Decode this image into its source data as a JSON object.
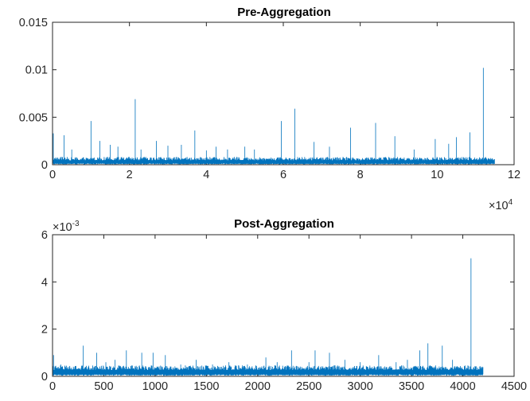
{
  "chart_data": [
    {
      "type": "line",
      "title": "Pre-Aggregation",
      "xlabel": "",
      "ylabel": "",
      "xlim": [
        0,
        120000
      ],
      "ylim": [
        0,
        0.015
      ],
      "x_ticks": [
        0,
        20000,
        40000,
        60000,
        80000,
        100000,
        120000
      ],
      "x_tick_labels": [
        "0",
        "2",
        "4",
        "6",
        "8",
        "10",
        "12"
      ],
      "x_exponent_label": {
        "base": "×10",
        "exp": "4"
      },
      "y_ticks": [
        0,
        0.005,
        0.01,
        0.015
      ],
      "y_tick_labels": [
        "0",
        "0.005",
        "0.01",
        "0.015"
      ],
      "grid": false,
      "color": "#0072BD",
      "n_points": 115000,
      "baseline_level": 0.0003,
      "noise_amplitude": 0.0004,
      "peaks": [
        {
          "x": 200,
          "y": 0.0033
        },
        {
          "x": 3000,
          "y": 0.0031
        },
        {
          "x": 5000,
          "y": 0.0016
        },
        {
          "x": 10000,
          "y": 0.0046
        },
        {
          "x": 12300,
          "y": 0.0025
        },
        {
          "x": 15000,
          "y": 0.0021
        },
        {
          "x": 17000,
          "y": 0.0019
        },
        {
          "x": 21500,
          "y": 0.0069
        },
        {
          "x": 23000,
          "y": 0.0016
        },
        {
          "x": 27000,
          "y": 0.0025
        },
        {
          "x": 30000,
          "y": 0.002
        },
        {
          "x": 33500,
          "y": 0.0021
        },
        {
          "x": 37000,
          "y": 0.0036
        },
        {
          "x": 40000,
          "y": 0.0015
        },
        {
          "x": 42500,
          "y": 0.0019
        },
        {
          "x": 45500,
          "y": 0.0016
        },
        {
          "x": 50000,
          "y": 0.0019
        },
        {
          "x": 52500,
          "y": 0.0016
        },
        {
          "x": 59500,
          "y": 0.0046
        },
        {
          "x": 63000,
          "y": 0.0059
        },
        {
          "x": 68000,
          "y": 0.0024
        },
        {
          "x": 72000,
          "y": 0.0019
        },
        {
          "x": 77500,
          "y": 0.0039
        },
        {
          "x": 84000,
          "y": 0.0044
        },
        {
          "x": 89000,
          "y": 0.003
        },
        {
          "x": 94000,
          "y": 0.0016
        },
        {
          "x": 99500,
          "y": 0.0027
        },
        {
          "x": 103000,
          "y": 0.0022
        },
        {
          "x": 105000,
          "y": 0.0029
        },
        {
          "x": 108500,
          "y": 0.0034
        },
        {
          "x": 112000,
          "y": 0.0102
        }
      ]
    },
    {
      "type": "line",
      "title": "Post-Aggregation",
      "xlabel": "",
      "ylabel": "",
      "xlim": [
        0,
        4500
      ],
      "ylim": [
        0,
        0.006
      ],
      "x_ticks": [
        0,
        500,
        1000,
        1500,
        2000,
        2500,
        3000,
        3500,
        4000,
        4500
      ],
      "x_tick_labels": [
        "0",
        "500",
        "1000",
        "1500",
        "2000",
        "2500",
        "3000",
        "3500",
        "4000",
        "4500"
      ],
      "y_ticks": [
        0,
        0.002,
        0.004,
        0.006
      ],
      "y_tick_labels": [
        "0",
        "2",
        "4",
        "6"
      ],
      "y_exponent_label": {
        "base": "×10",
        "exp": "-3"
      },
      "grid": false,
      "color": "#0072BD",
      "n_points": 4200,
      "baseline_level": 0.00018,
      "noise_amplitude": 0.00022,
      "peaks": [
        {
          "x": 10,
          "y": 0.0009
        },
        {
          "x": 80,
          "y": 0.0005
        },
        {
          "x": 150,
          "y": 0.0004
        },
        {
          "x": 300,
          "y": 0.0013
        },
        {
          "x": 430,
          "y": 0.001
        },
        {
          "x": 520,
          "y": 0.0006
        },
        {
          "x": 610,
          "y": 0.0007
        },
        {
          "x": 720,
          "y": 0.0011
        },
        {
          "x": 870,
          "y": 0.001
        },
        {
          "x": 980,
          "y": 0.001
        },
        {
          "x": 1100,
          "y": 0.0009
        },
        {
          "x": 1250,
          "y": 0.0005
        },
        {
          "x": 1400,
          "y": 0.0007
        },
        {
          "x": 1560,
          "y": 0.0005
        },
        {
          "x": 1720,
          "y": 0.0006
        },
        {
          "x": 1900,
          "y": 0.0005
        },
        {
          "x": 2080,
          "y": 0.0008
        },
        {
          "x": 2190,
          "y": 0.0006
        },
        {
          "x": 2330,
          "y": 0.0011
        },
        {
          "x": 2500,
          "y": 0.0006
        },
        {
          "x": 2560,
          "y": 0.0011
        },
        {
          "x": 2700,
          "y": 0.001
        },
        {
          "x": 2850,
          "y": 0.0007
        },
        {
          "x": 3000,
          "y": 0.0006
        },
        {
          "x": 3180,
          "y": 0.0009
        },
        {
          "x": 3350,
          "y": 0.0006
        },
        {
          "x": 3460,
          "y": 0.0007
        },
        {
          "x": 3580,
          "y": 0.0011
        },
        {
          "x": 3660,
          "y": 0.0014
        },
        {
          "x": 3800,
          "y": 0.0013
        },
        {
          "x": 3900,
          "y": 0.0007
        },
        {
          "x": 4080,
          "y": 0.005
        }
      ]
    }
  ]
}
